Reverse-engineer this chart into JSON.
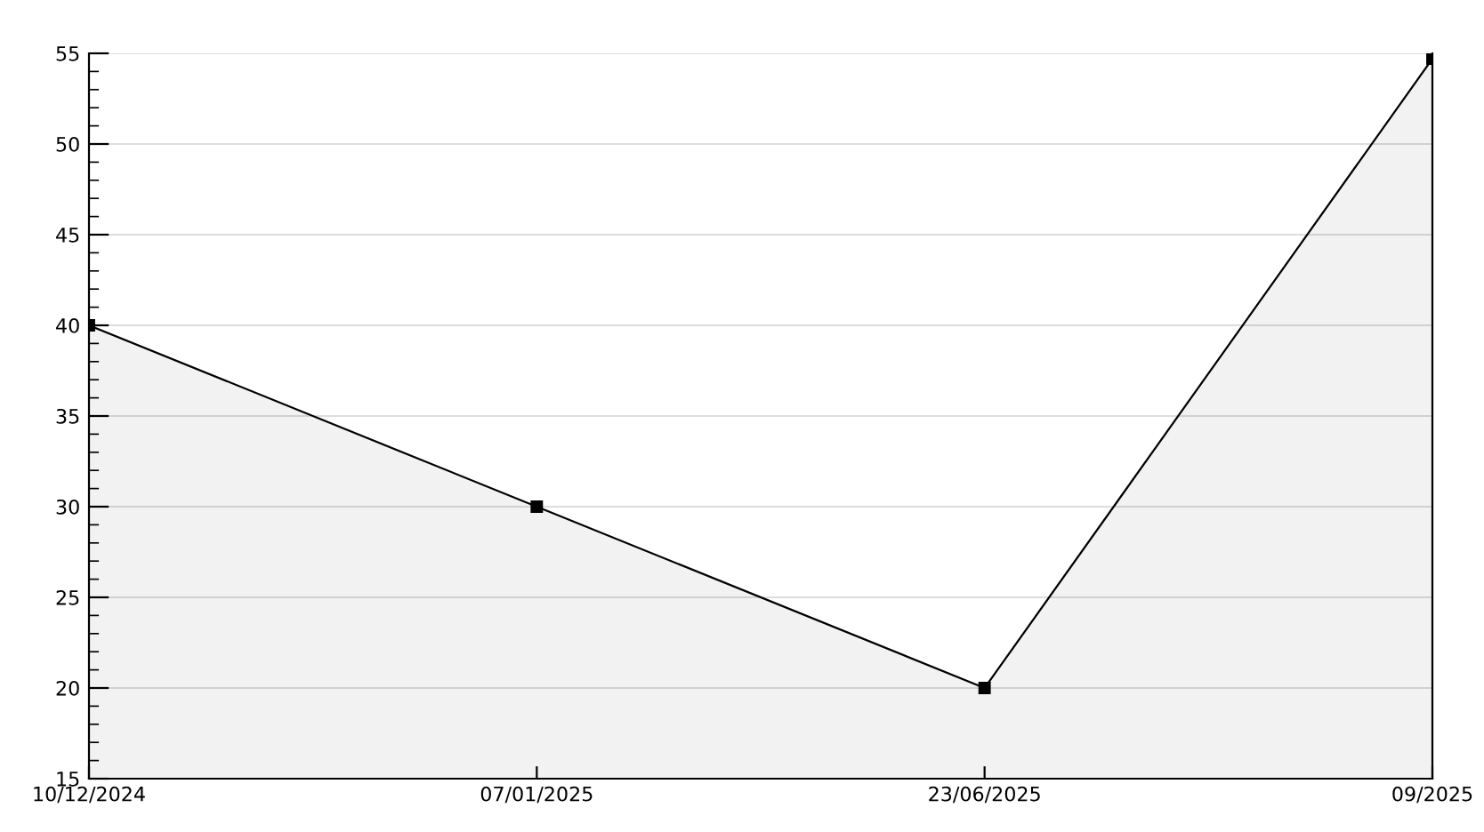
{
  "chart_data": {
    "type": "area",
    "categories": [
      "10/12/2024",
      "07/01/2025",
      "23/06/2025",
      "09/2025"
    ],
    "series": [
      {
        "color": "#000000",
        "values": [
          40,
          30,
          20,
          54.7
        ]
      }
    ],
    "ylim": [
      15,
      55
    ],
    "yticks": [
      15,
      20,
      25,
      30,
      35,
      40,
      45,
      50,
      55
    ],
    "grid": "y",
    "marker": "square",
    "line_style": "solid",
    "legend": false
  }
}
